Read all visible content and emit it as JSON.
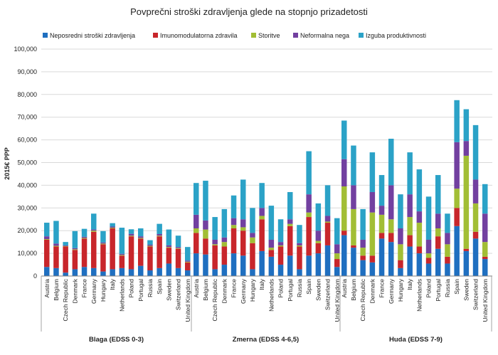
{
  "colors": [
    "#1f6fc0",
    "#c8262b",
    "#a2be35",
    "#7240a0",
    "#2ba2c7"
  ],
  "chart_data": {
    "type": "bar",
    "stacked": true,
    "title": "Povprečni stroški zdravljenja glede na stopnjo prizadetosti",
    "xlabel": "",
    "ylabel": "2015€ PPP",
    "ylim": [
      0,
      100000
    ],
    "yticks": [
      "0",
      "10,000",
      "20,000",
      "30,000",
      "40,000",
      "50,000",
      "60,000",
      "70,000",
      "80,000",
      "90,000",
      "100,000"
    ],
    "grid": true,
    "legend_position": "top",
    "countries": [
      "Austria",
      "Belgium",
      "Czech Republic",
      "Denmark",
      "France",
      "Germany",
      "Hungary",
      "Italy",
      "Netherlands",
      "Poland",
      "Portugal",
      "Russia",
      "Spain",
      "Sweden",
      "Switzerland",
      "United Kingdom"
    ],
    "series_names": [
      "Neposredni stroški zdravljenja",
      "Imunomodulatorna zdravila",
      "Storitve",
      "Neformalna nega",
      "Izguba produktivnosti"
    ],
    "groups": [
      {
        "label": "Blaga (EDSS 0-3)",
        "values": [
          [
            4000,
            12000,
            300,
            1200,
            6000
          ],
          [
            3500,
            9500,
            300,
            1000,
            10000
          ],
          [
            1500,
            11500,
            200,
            300,
            1500
          ],
          [
            3000,
            8500,
            300,
            500,
            7500
          ],
          [
            4000,
            12500,
            300,
            500,
            3500
          ],
          [
            3500,
            16000,
            500,
            500,
            7000
          ],
          [
            2000,
            12000,
            300,
            500,
            5000
          ],
          [
            3000,
            18000,
            300,
            500,
            1500
          ],
          [
            3500,
            5500,
            300,
            500,
            11500
          ],
          [
            3000,
            14500,
            300,
            800,
            2000
          ],
          [
            4500,
            12000,
            300,
            700,
            3500
          ],
          [
            2500,
            10500,
            300,
            500,
            2000
          ],
          [
            3500,
            14000,
            300,
            700,
            4500
          ],
          [
            5500,
            7000,
            300,
            700,
            7000
          ],
          [
            3500,
            8500,
            300,
            500,
            5000
          ],
          [
            2500,
            3500,
            300,
            500,
            6000
          ]
        ]
      },
      {
        "label": "Zmerna (EDSS 4-6,5)",
        "values": [
          [
            10000,
            9000,
            2000,
            6000,
            14000
          ],
          [
            9500,
            7000,
            4000,
            4000,
            17500
          ],
          [
            3000,
            10500,
            500,
            2000,
            10000
          ],
          [
            5000,
            8000,
            2000,
            2000,
            12500
          ],
          [
            10000,
            11000,
            1500,
            3000,
            10000
          ],
          [
            9000,
            11000,
            1500,
            3500,
            17500
          ],
          [
            3000,
            11500,
            2500,
            2000,
            11000
          ],
          [
            11000,
            14000,
            1500,
            3500,
            11000
          ],
          [
            8500,
            3000,
            1000,
            3500,
            15000
          ],
          [
            5000,
            8000,
            500,
            1500,
            10000
          ],
          [
            9000,
            13000,
            1000,
            2000,
            12000
          ],
          [
            3000,
            10000,
            500,
            1000,
            8000
          ],
          [
            9000,
            17000,
            2000,
            8000,
            19000
          ],
          [
            10000,
            4500,
            1000,
            4500,
            12000
          ],
          [
            13500,
            10000,
            500,
            2500,
            13500
          ],
          [
            4000,
            3500,
            2500,
            4000,
            11500
          ]
        ]
      },
      {
        "label": "Huda (EDSS 7-9)",
        "values": [
          [
            18000,
            2000,
            19500,
            12000,
            17000
          ],
          [
            12500,
            1000,
            16000,
            10500,
            17500
          ],
          [
            7000,
            2000,
            3500,
            3500,
            13500
          ],
          [
            6000,
            3000,
            19000,
            9000,
            17500
          ],
          [
            16500,
            2500,
            8000,
            4000,
            13500
          ],
          [
            15000,
            4000,
            6000,
            15000,
            20500
          ],
          [
            3500,
            3500,
            7000,
            7000,
            15000
          ],
          [
            13000,
            5000,
            8000,
            10000,
            18500
          ],
          [
            10000,
            3000,
            10500,
            5000,
            18500
          ],
          [
            5500,
            2500,
            2000,
            6000,
            19000
          ],
          [
            12000,
            5500,
            3500,
            6500,
            17000
          ],
          [
            5500,
            3000,
            5500,
            5000,
            8500
          ],
          [
            22000,
            8000,
            8500,
            20500,
            18500
          ],
          [
            11000,
            1000,
            41000,
            6500,
            14000
          ],
          [
            16500,
            3000,
            12500,
            10500,
            24000
          ],
          [
            7500,
            1000,
            6500,
            12500,
            13000
          ]
        ]
      }
    ]
  }
}
